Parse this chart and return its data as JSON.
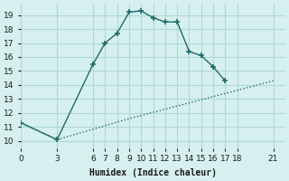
{
  "xlabel": "Humidex (Indice chaleur)",
  "bg_color": "#d6f0ef",
  "grid_color": "#b0d8d5",
  "line_color": "#1e6b6b",
  "line1_x": [
    0,
    3,
    6,
    7,
    8,
    9,
    10,
    11,
    12,
    13,
    14,
    15,
    16,
    17
  ],
  "line1_y": [
    11.3,
    10.1,
    15.5,
    17.0,
    17.7,
    19.2,
    19.3,
    18.8,
    18.5,
    18.5,
    16.4,
    16.1,
    15.3,
    14.3
  ],
  "line2_x": [
    0,
    3,
    9,
    21
  ],
  "line2_y": [
    11.3,
    10.1,
    11.6,
    14.3
  ],
  "xticks": [
    0,
    3,
    6,
    7,
    8,
    9,
    10,
    11,
    12,
    13,
    14,
    15,
    16,
    17,
    18,
    21
  ],
  "yticks": [
    10,
    11,
    12,
    13,
    14,
    15,
    16,
    17,
    18,
    19
  ],
  "xlim": [
    0,
    22
  ],
  "ylim": [
    9.5,
    19.8
  ]
}
